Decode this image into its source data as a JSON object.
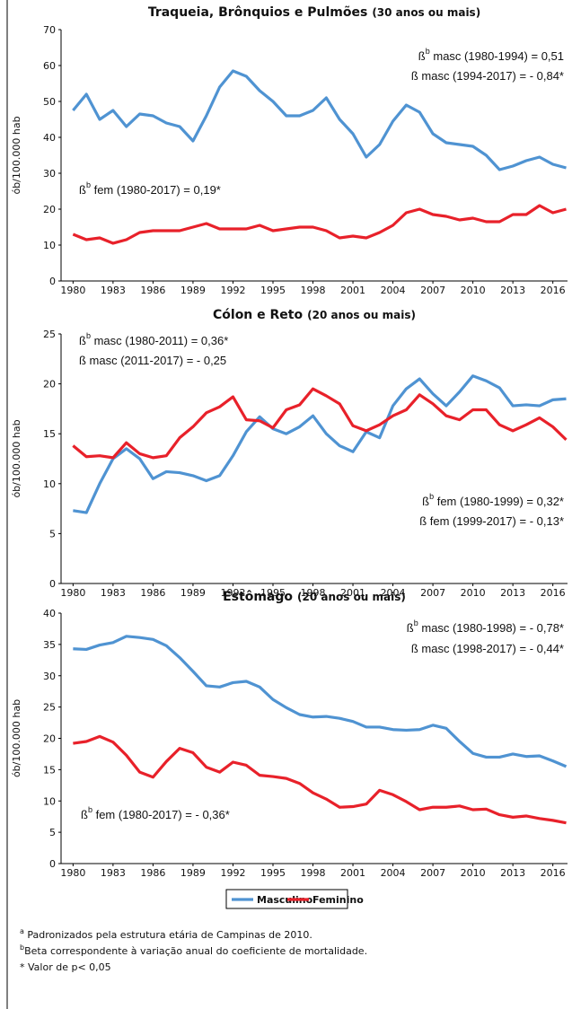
{
  "chart_data": [
    {
      "type": "line",
      "title": "Traqueia, Brônquios e Pulmões",
      "subtitle": "(30 anos ou mais)",
      "ylabel": "ób/100.000 hab",
      "x": [
        1980,
        1981,
        1982,
        1983,
        1984,
        1985,
        1986,
        1987,
        1988,
        1989,
        1990,
        1991,
        1992,
        1993,
        1994,
        1995,
        1996,
        1997,
        1998,
        1999,
        2000,
        2001,
        2002,
        2003,
        2004,
        2005,
        2006,
        2007,
        2008,
        2009,
        2010,
        2011,
        2012,
        2013,
        2014,
        2015,
        2016,
        2017
      ],
      "xlim": [
        1979.1,
        2017.1
      ],
      "xticks": [
        1980,
        1983,
        1986,
        1989,
        1992,
        1995,
        1998,
        2001,
        2004,
        2007,
        2010,
        2013,
        2016
      ],
      "ylim": [
        0,
        70
      ],
      "yticks": [
        0,
        10,
        20,
        30,
        40,
        50,
        60,
        70
      ],
      "grid": false,
      "series": [
        {
          "name": "Masculino",
          "color": "#4f93d2",
          "values": [
            47.5,
            52,
            45,
            47.5,
            43,
            46.5,
            46,
            44,
            43,
            39,
            46,
            54,
            58.5,
            57,
            53,
            50,
            46,
            46,
            47.5,
            51,
            45,
            41,
            34.5,
            38,
            44.5,
            49,
            47,
            41,
            38.5,
            38,
            37.5,
            35,
            31,
            32,
            33.5,
            34.5,
            32.5,
            31.5
          ]
        },
        {
          "name": "Feminino",
          "color": "#e8212a",
          "values": [
            13,
            11.5,
            12,
            10.5,
            11.5,
            13.5,
            14,
            14,
            14,
            15,
            16,
            14.5,
            14.5,
            14.5,
            15.5,
            14,
            14.5,
            15,
            15,
            14,
            12,
            12.5,
            12,
            13.5,
            15.5,
            19,
            20,
            18.5,
            18,
            17,
            17.5,
            16.5,
            16.5,
            18.5,
            18.5,
            21,
            19,
            20
          ]
        }
      ],
      "annotations": [
        {
          "base": "ß",
          "sup": "b",
          "text": " masc (1980-1994) = 0,51"
        },
        {
          "text": "ß masc (1994-2017) = - 0,84*"
        },
        {
          "base": "ß",
          "sup": "b",
          "text": " fem (1980-2017) = 0,19*"
        }
      ]
    },
    {
      "type": "line",
      "title": "Cólon e Reto",
      "subtitle": "(20 anos ou mais)",
      "ylabel": "ób/100.000 hab",
      "x": [
        1980,
        1981,
        1982,
        1983,
        1984,
        1985,
        1986,
        1987,
        1988,
        1989,
        1990,
        1991,
        1992,
        1993,
        1994,
        1995,
        1996,
        1997,
        1998,
        1999,
        2000,
        2001,
        2002,
        2003,
        2004,
        2005,
        2006,
        2007,
        2008,
        2009,
        2010,
        2011,
        2012,
        2013,
        2014,
        2015,
        2016,
        2017
      ],
      "xlim": [
        1979.1,
        2017.1
      ],
      "xticks": [
        1980,
        1983,
        1986,
        1989,
        1992,
        1995,
        1998,
        2001,
        2004,
        2007,
        2010,
        2013,
        2016
      ],
      "ylim": [
        0,
        25
      ],
      "yticks": [
        0,
        5,
        10,
        15,
        20,
        25
      ],
      "grid": false,
      "series": [
        {
          "color": "#4f93d2",
          "values": [
            7.3,
            7.1,
            10,
            12.5,
            13.5,
            12.5,
            10.5,
            11.2,
            11.1,
            10.8,
            10.3,
            10.8,
            12.8,
            15.2,
            16.7,
            15.5,
            15,
            15.7,
            16.8,
            15,
            13.8,
            13.2,
            15.2,
            14.6,
            17.8,
            19.5,
            20.5,
            19,
            17.8,
            19.2,
            20.8,
            20.3,
            19.6,
            17.8,
            17.9,
            17.8,
            18.4,
            18.5
          ]
        },
        {
          "color": "#e8212a",
          "values": [
            13.8,
            12.7,
            12.8,
            12.6,
            14.1,
            13,
            12.6,
            12.8,
            14.6,
            15.7,
            17.1,
            17.7,
            18.7,
            16.4,
            16.3,
            15.6,
            17.4,
            17.9,
            19.5,
            18.8,
            18,
            15.8,
            15.3,
            15.9,
            16.8,
            17.4,
            18.9,
            18,
            16.8,
            16.4,
            17.4,
            17.4,
            15.9,
            15.3,
            15.9,
            16.6,
            15.7,
            14.4
          ]
        }
      ],
      "annotations": [
        {
          "base": "ß",
          "sup": "b",
          "text": " masc (1980-2011) = 0,36*"
        },
        {
          "text": "ß masc (2011-2017) = - 0,25"
        },
        {
          "base": "ß",
          "sup": "b",
          "text": " fem (1980-1999) = 0,32*"
        },
        {
          "text": "ß fem (1999-2017) = - 0,13*"
        }
      ]
    },
    {
      "type": "line",
      "title": "Estômago",
      "subtitle": "(20 anos ou mais)",
      "ylabel": "ób/100.000 hab",
      "x": [
        1980,
        1981,
        1982,
        1983,
        1984,
        1985,
        1986,
        1987,
        1988,
        1989,
        1990,
        1991,
        1992,
        1993,
        1994,
        1995,
        1996,
        1997,
        1998,
        1999,
        2000,
        2001,
        2002,
        2003,
        2004,
        2005,
        2006,
        2007,
        2008,
        2009,
        2010,
        2011,
        2012,
        2013,
        2014,
        2015,
        2016,
        2017
      ],
      "xlim": [
        1979.1,
        2017.1
      ],
      "xticks": [
        1980,
        1983,
        1986,
        1989,
        1992,
        1995,
        1998,
        2001,
        2004,
        2007,
        2010,
        2013,
        2016
      ],
      "ylim": [
        0,
        40
      ],
      "yticks": [
        0,
        5,
        10,
        15,
        20,
        25,
        30,
        35,
        40
      ],
      "grid": false,
      "series": [
        {
          "color": "#4f93d2",
          "values": [
            34.3,
            34.2,
            34.9,
            35.3,
            36.3,
            36.1,
            35.8,
            34.8,
            32.9,
            30.7,
            28.4,
            28.2,
            28.9,
            29.1,
            28.2,
            26.2,
            24.9,
            23.8,
            23.4,
            23.5,
            23.2,
            22.7,
            21.8,
            21.8,
            21.4,
            21.3,
            21.4,
            22.1,
            21.6,
            19.5,
            17.6,
            17,
            17,
            17.5,
            17.1,
            17.2,
            16.4,
            15.5
          ]
        },
        {
          "color": "#e8212a",
          "values": [
            19.2,
            19.5,
            20.3,
            19.4,
            17.3,
            14.6,
            13.8,
            16.3,
            18.4,
            17.7,
            15.4,
            14.6,
            16.2,
            15.7,
            14.1,
            13.9,
            13.6,
            12.8,
            11.3,
            10.3,
            9,
            9.1,
            9.5,
            11.7,
            11,
            9.9,
            8.6,
            9,
            9,
            9.2,
            8.6,
            8.7,
            7.8,
            7.4,
            7.6,
            7.2,
            6.9,
            6.5
          ]
        }
      ],
      "annotations": [
        {
          "base": "ß",
          "sup": "b",
          "text": " masc (1980-1998) = - 0,78*"
        },
        {
          "text": "ß masc (1998-2017) = - 0,44*"
        },
        {
          "base": "ß",
          "sup": "b",
          "text": " fem (1980-2017) = - 0,36*"
        }
      ]
    }
  ],
  "footnotes": [
    {
      "mark": "a",
      "text": " Padronizados pela estrutura etária de Campinas de 2010."
    },
    {
      "mark": "b",
      "text": "Beta correspondente à variação anual do coeficiente de mortalidade."
    },
    {
      "text": "* Valor de p< 0,05"
    }
  ]
}
